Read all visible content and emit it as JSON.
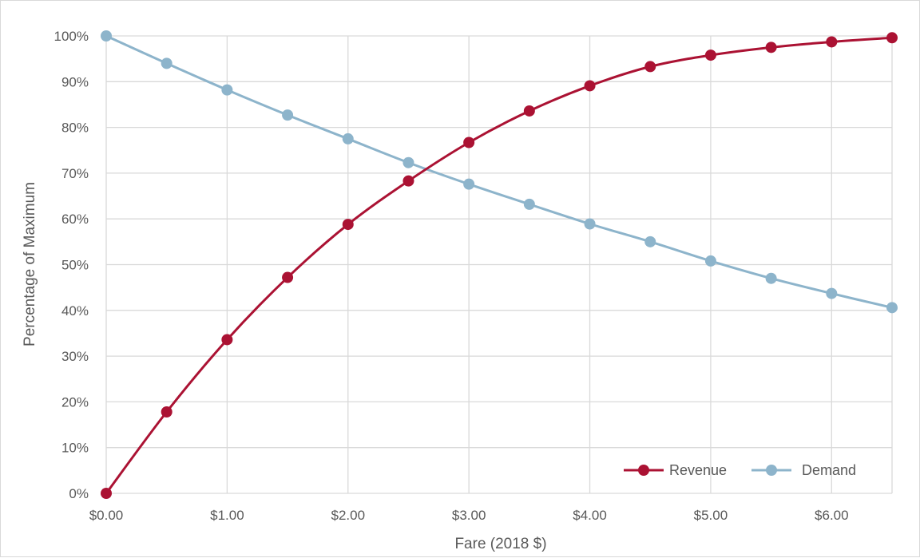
{
  "chart_data": {
    "type": "line",
    "xlabel": "Fare (2018 $)",
    "ylabel": "Percentage of Maximum",
    "x": [
      0,
      0.5,
      1,
      1.5,
      2,
      2.5,
      3,
      3.5,
      4,
      4.5,
      5,
      5.5,
      6,
      6.5
    ],
    "xlim": [
      0,
      6.5
    ],
    "ylim": [
      0,
      100
    ],
    "x_ticks": [
      0,
      1,
      2,
      3,
      4,
      5,
      6
    ],
    "x_tick_labels": [
      "$0.00",
      "$1.00",
      "$2.00",
      "$3.00",
      "$4.00",
      "$5.00",
      "$6.00"
    ],
    "y_ticks": [
      0,
      10,
      20,
      30,
      40,
      50,
      60,
      70,
      80,
      90,
      100
    ],
    "y_tick_labels": [
      "0%",
      "10%",
      "20%",
      "30%",
      "40%",
      "50%",
      "60%",
      "70%",
      "80%",
      "90%",
      "100%"
    ],
    "grid": true,
    "legend_position": "bottom-right",
    "series": [
      {
        "name": "Revenue",
        "color": "#ab1233",
        "values": [
          0,
          17.8,
          33.6,
          47.2,
          58.8,
          68.3,
          76.7,
          83.6,
          89.1,
          93.3,
          95.8,
          97.5,
          98.7,
          99.6
        ]
      },
      {
        "name": "Demand",
        "color": "#8db4cb",
        "values": [
          100,
          94.0,
          88.2,
          82.7,
          77.5,
          72.3,
          67.6,
          63.2,
          58.9,
          55.0,
          50.8,
          47.0,
          43.7,
          40.6
        ]
      }
    ]
  }
}
